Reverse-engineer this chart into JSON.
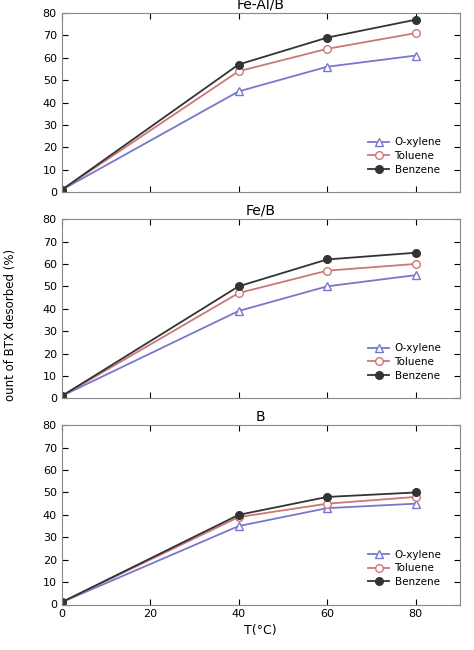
{
  "x": [
    0,
    40,
    60,
    80
  ],
  "panels": [
    {
      "title": "Fe-Al/B",
      "oxylene": [
        1,
        45,
        56,
        61
      ],
      "toluene": [
        1,
        54,
        64,
        71
      ],
      "benzene": [
        1,
        57,
        69,
        77
      ]
    },
    {
      "title": "Fe/B",
      "oxylene": [
        1,
        39,
        50,
        55
      ],
      "toluene": [
        1,
        47,
        57,
        60
      ],
      "benzene": [
        1,
        50,
        62,
        65
      ]
    },
    {
      "title": "B",
      "oxylene": [
        1,
        35,
        43,
        45
      ],
      "toluene": [
        1,
        39,
        45,
        48
      ],
      "benzene": [
        1,
        40,
        48,
        50
      ]
    }
  ],
  "color_oxylene": "#7777cc",
  "color_toluene": "#cc7777",
  "color_benzene": "#333333",
  "ylabel": "ount of BTX desorbed (%)",
  "xlabel": "T(°C)",
  "ylim": [
    0,
    80
  ],
  "yticks": [
    0,
    10,
    20,
    30,
    40,
    50,
    60,
    70,
    80
  ],
  "xlim": [
    0,
    90
  ],
  "xticks": [
    0,
    20,
    40,
    60,
    80
  ],
  "bg_color": "#ffffff",
  "legend_labels": [
    "O-xylene",
    "Toluene",
    "Benzene"
  ]
}
